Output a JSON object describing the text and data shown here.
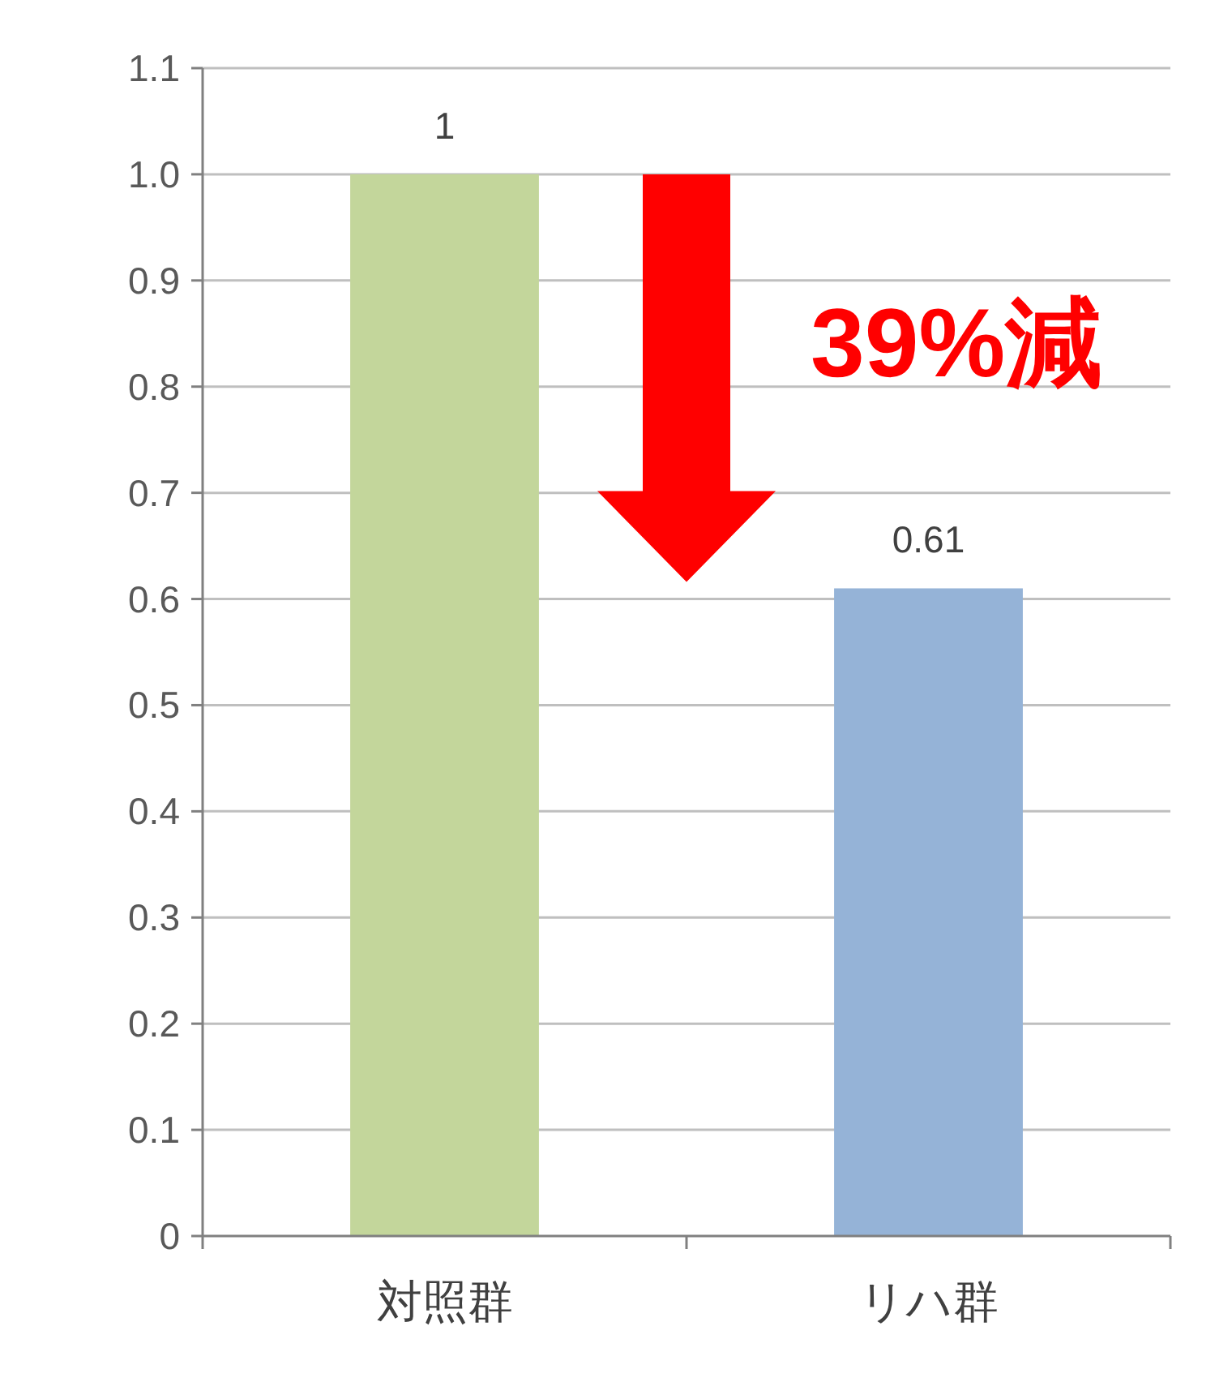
{
  "chart_data": {
    "type": "bar",
    "categories": [
      "対照群",
      "リハ群"
    ],
    "values": [
      1,
      0.61
    ],
    "colors": [
      "#c3d69b",
      "#95b3d7"
    ],
    "ylim": [
      0,
      1.1
    ],
    "yticks": [
      0,
      0.1,
      0.2,
      0.3,
      0.4,
      0.5,
      0.6,
      0.7,
      0.8,
      0.9,
      {
        "value": 1,
        "label": "1.0"
      },
      1.1
    ],
    "grid": "y",
    "data_labels": true,
    "annotations": [
      "39%減"
    ]
  }
}
